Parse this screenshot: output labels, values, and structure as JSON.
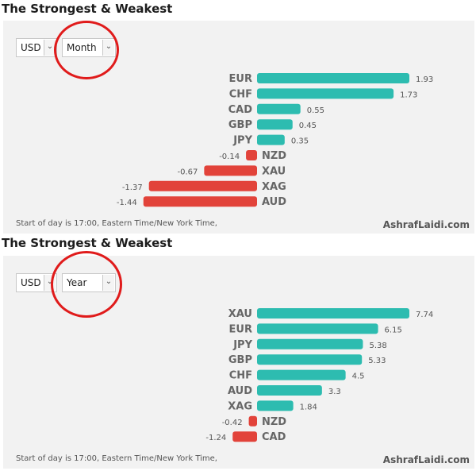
{
  "colors": {
    "positive": "#2dbcb0",
    "negative": "#e2433a",
    "circle": "#e01b1b"
  },
  "chart_data": [
    {
      "type": "bar",
      "title": "The Strongest & Weakest",
      "controls": {
        "currency": "USD",
        "period": "Month"
      },
      "categories": [
        "EUR",
        "CHF",
        "CAD",
        "GBP",
        "JPY",
        "NZD",
        "XAU",
        "XAG",
        "AUD"
      ],
      "values": [
        1.93,
        1.73,
        0.55,
        0.45,
        0.35,
        -0.14,
        -0.67,
        -1.37,
        -1.44
      ],
      "value_labels": [
        "1.93",
        "1.73",
        "0.55",
        "0.45",
        "0.35",
        "-0.14",
        "-0.67",
        "-1.37",
        "-1.44"
      ],
      "footer": "Start of day is 17:00, Eastern Time/New York Time,",
      "brand": "AshrafLaidi.com"
    },
    {
      "type": "bar",
      "title": "The Strongest & Weakest",
      "controls": {
        "currency": "USD",
        "period": "Year"
      },
      "categories": [
        "XAU",
        "EUR",
        "JPY",
        "GBP",
        "CHF",
        "AUD",
        "XAG",
        "NZD",
        "CAD"
      ],
      "values": [
        7.74,
        6.15,
        5.38,
        5.33,
        4.5,
        3.3,
        1.84,
        -0.42,
        -1.24
      ],
      "value_labels": [
        "7.74",
        "6.15",
        "5.38",
        "5.33",
        "4.5",
        "3.3",
        "1.84",
        "-0.42",
        "-1.24"
      ],
      "footer": "Start of day is 17:00, Eastern Time/New York Time,",
      "brand": "AshrafLaidi.com"
    }
  ]
}
